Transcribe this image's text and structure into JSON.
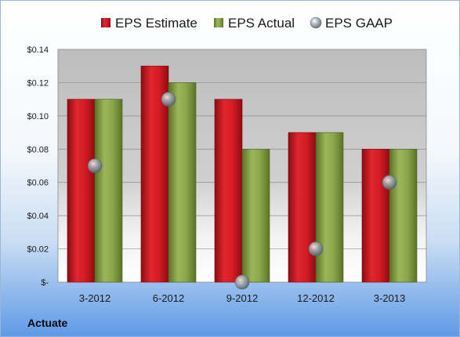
{
  "chart_data": {
    "type": "bar",
    "categories": [
      "3-2012",
      "6-2012",
      "9-2012",
      "12-2012",
      "3-2013"
    ],
    "series": [
      {
        "name": "EPS Estimate",
        "kind": "bar",
        "color": "#c0141c",
        "values": [
          0.11,
          0.13,
          0.11,
          0.09,
          0.08
        ]
      },
      {
        "name": "EPS Actual",
        "kind": "bar",
        "color": "#7f9a3f",
        "values": [
          0.11,
          0.12,
          0.08,
          0.09,
          0.08
        ]
      },
      {
        "name": "EPS GAAP",
        "kind": "scatter",
        "color": "#9aa4ae",
        "values": [
          0.07,
          0.11,
          0.0,
          0.02,
          0.06
        ]
      }
    ],
    "yticks": [
      "$-",
      "$0.02",
      "$0.04",
      "$0.06",
      "$0.08",
      "$0.10",
      "$0.12",
      "$0.14"
    ],
    "ylim": [
      0,
      0.14
    ],
    "ystep": 0.02,
    "grid": true,
    "legend_position": "top",
    "company": "Actuate"
  }
}
